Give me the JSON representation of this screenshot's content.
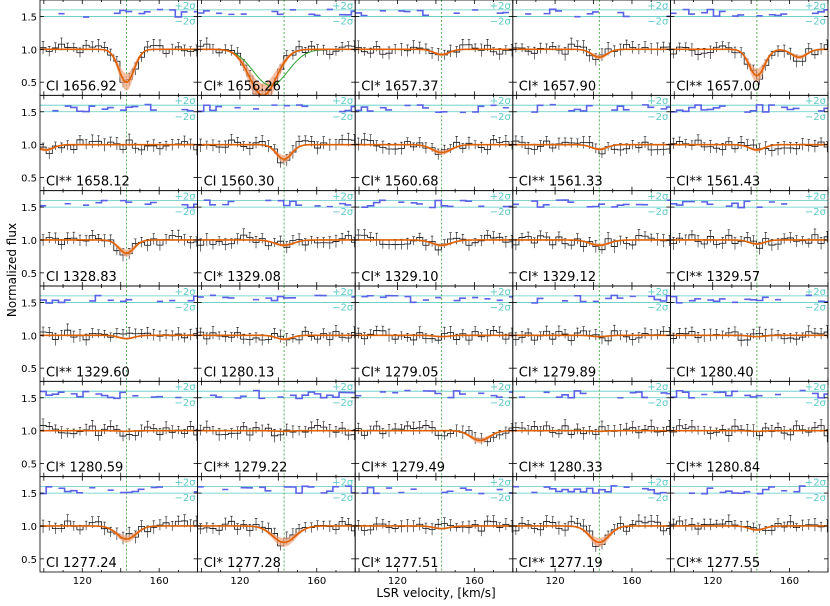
{
  "figure": {
    "ylabel": "Normalized flux",
    "xlabel": "LSR velocity, [km/s]",
    "sigma_plus": "+2σ",
    "sigma_minus": "−2σ"
  },
  "colors": {
    "data_histogram": "#111111",
    "errorbar": "#111111",
    "model_line": "#e06000",
    "model_band": "#f3a27a",
    "component_line": "#2ca02c",
    "residual": "#5a62e6",
    "sigma_lines": "#5cc9c4",
    "velocity_marker": "#2ca02c"
  },
  "chart_data": {
    "type": "line",
    "grid": {
      "rows": 6,
      "cols": 5
    },
    "xlim": [
      98,
      180
    ],
    "ylim": [
      0.3,
      1.75
    ],
    "x_ticks": [
      120,
      140,
      160
    ],
    "x_tick_labels": [
      "120",
      "",
      "160"
    ],
    "y_ticks": [
      0.5,
      1.0,
      1.5
    ],
    "y_tick_labels": [
      "0.5",
      "1.0",
      "1.5"
    ],
    "panels": [
      {
        "label": "CI 1656.92",
        "marker": 143,
        "lines": [
          {
            "v": 143,
            "depth": 0.5,
            "width": 4
          }
        ],
        "green": []
      },
      {
        "label": "CI* 1656.26",
        "marker": 143,
        "lines": [
          {
            "v": 132,
            "depth": 0.7,
            "width": 7
          }
        ],
        "green": [
          {
            "v": 136,
            "depth": 0.55,
            "width": 9
          }
        ]
      },
      {
        "label": "CI* 1657.37",
        "marker": 143,
        "lines": [
          {
            "v": 143,
            "depth": 0.08,
            "width": 4
          }
        ],
        "green": []
      },
      {
        "label": "CI* 1657.90",
        "marker": 143,
        "lines": [
          {
            "v": 143,
            "depth": 0.12,
            "width": 4
          }
        ],
        "green": []
      },
      {
        "label": "CI** 1657.00",
        "marker": 143,
        "lines": [
          {
            "v": 143,
            "depth": 0.4,
            "width": 4
          },
          {
            "v": 165,
            "depth": 0.12,
            "width": 4
          }
        ],
        "green": []
      },
      {
        "label": "CI** 1658.12",
        "marker": 143,
        "lines": [
          {
            "v": 101,
            "depth": 0.08,
            "width": 4
          }
        ],
        "green": []
      },
      {
        "label": "CI 1560.30",
        "marker": 143,
        "lines": [
          {
            "v": 143,
            "depth": 0.22,
            "width": 4
          }
        ],
        "green": []
      },
      {
        "label": "CI* 1560.68",
        "marker": 143,
        "lines": [
          {
            "v": 143,
            "depth": 0.12,
            "width": 5
          }
        ],
        "green": []
      },
      {
        "label": "CI** 1561.33",
        "marker": 143,
        "lines": [
          {
            "v": 143,
            "depth": 0.07,
            "width": 4
          }
        ],
        "green": []
      },
      {
        "label": "CI** 1561.43",
        "marker": 143,
        "lines": [
          {
            "v": 143,
            "depth": 0.08,
            "width": 4
          }
        ],
        "green": []
      },
      {
        "label": "CI 1328.83",
        "marker": 143,
        "lines": [
          {
            "v": 143,
            "depth": 0.2,
            "width": 4
          }
        ],
        "green": []
      },
      {
        "label": "CI* 1329.08",
        "marker": 143,
        "lines": [
          {
            "v": 143,
            "depth": 0.08,
            "width": 5
          }
        ],
        "green": []
      },
      {
        "label": "CI* 1329.10",
        "marker": 143,
        "lines": [
          {
            "v": 143,
            "depth": 0.08,
            "width": 5
          }
        ],
        "green": []
      },
      {
        "label": "CI* 1329.12",
        "marker": 143,
        "lines": [
          {
            "v": 143,
            "depth": 0.08,
            "width": 5
          }
        ],
        "green": []
      },
      {
        "label": "CI** 1329.57",
        "marker": 143,
        "lines": [
          {
            "v": 143,
            "depth": 0.06,
            "width": 4
          }
        ],
        "green": []
      },
      {
        "label": "CI** 1329.60",
        "marker": 143,
        "lines": [
          {
            "v": 143,
            "depth": 0.05,
            "width": 4
          }
        ],
        "green": []
      },
      {
        "label": "CI 1280.13",
        "marker": 143,
        "lines": [
          {
            "v": 143,
            "depth": 0.06,
            "width": 4
          }
        ],
        "green": []
      },
      {
        "label": "CI* 1279.05",
        "marker": 143,
        "lines": [
          {
            "v": 143,
            "depth": 0.02,
            "width": 4
          }
        ],
        "green": []
      },
      {
        "label": "CI* 1279.89",
        "marker": 143,
        "lines": [
          {
            "v": 143,
            "depth": 0.02,
            "width": 4
          }
        ],
        "green": []
      },
      {
        "label": "CI* 1280.40",
        "marker": 143,
        "lines": [
          {
            "v": 143,
            "depth": 0.02,
            "width": 4
          }
        ],
        "green": []
      },
      {
        "label": "CI* 1280.59",
        "marker": 143,
        "lines": [
          {
            "v": 143,
            "depth": 0.01,
            "width": 4
          }
        ],
        "green": []
      },
      {
        "label": "CI** 1279.22",
        "marker": 143,
        "lines": [
          {
            "v": 143,
            "depth": 0.01,
            "width": 4
          }
        ],
        "green": []
      },
      {
        "label": "CI** 1279.49",
        "marker": 143,
        "lines": [
          {
            "v": 163,
            "depth": 0.15,
            "width": 5
          }
        ],
        "green": []
      },
      {
        "label": "CI** 1280.33",
        "marker": 143,
        "lines": [
          {
            "v": 143,
            "depth": 0.01,
            "width": 4
          }
        ],
        "green": []
      },
      {
        "label": "CI** 1280.84",
        "marker": 143,
        "lines": [
          {
            "v": 143,
            "depth": 0.01,
            "width": 4
          }
        ],
        "green": []
      },
      {
        "label": "CI 1277.24",
        "marker": 143,
        "lines": [
          {
            "v": 143,
            "depth": 0.2,
            "width": 5
          }
        ],
        "green": []
      },
      {
        "label": "CI* 1277.28",
        "marker": 143,
        "lines": [
          {
            "v": 143,
            "depth": 0.25,
            "width": 6
          }
        ],
        "green": []
      },
      {
        "label": "CI* 1277.51",
        "marker": 143,
        "lines": [
          {
            "v": 143,
            "depth": 0.04,
            "width": 4
          }
        ],
        "green": []
      },
      {
        "label": "CI** 1277.19",
        "marker": 143,
        "lines": [
          {
            "v": 143,
            "depth": 0.25,
            "width": 5
          }
        ],
        "green": []
      },
      {
        "label": "CI** 1277.55",
        "marker": 143,
        "lines": [
          {
            "v": 143,
            "depth": 0.06,
            "width": 4
          }
        ],
        "green": []
      }
    ]
  }
}
